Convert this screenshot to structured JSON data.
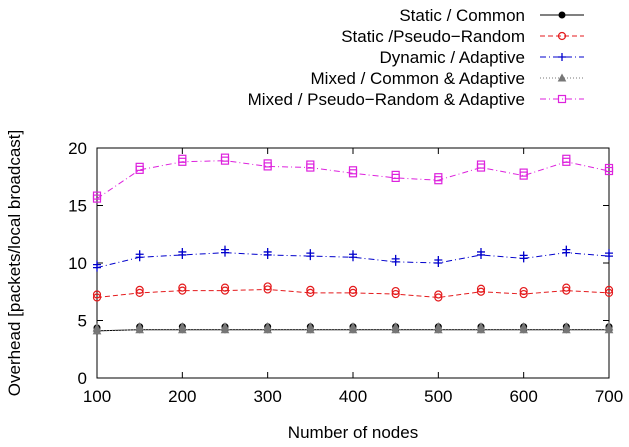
{
  "chart_data": {
    "type": "line",
    "title": "",
    "xlabel": "Number of nodes",
    "ylabel": "Overhead [packets/local broadcast]",
    "xlim": [
      100,
      700
    ],
    "ylim": [
      0,
      20
    ],
    "x_ticks": [
      100,
      200,
      300,
      400,
      500,
      600,
      700
    ],
    "y_ticks": [
      0,
      5,
      10,
      15,
      20
    ],
    "grid": false,
    "legend": "top-right, outside plot area",
    "x": [
      100,
      150,
      200,
      250,
      300,
      350,
      400,
      450,
      500,
      550,
      600,
      650,
      700
    ],
    "series": [
      {
        "name": "Static / Common",
        "color": "#000000",
        "marker": "filled-circle",
        "dash": "solid",
        "values": [
          4.1,
          4.2,
          4.2,
          4.2,
          4.2,
          4.2,
          4.2,
          4.2,
          4.2,
          4.2,
          4.2,
          4.2,
          4.2
        ]
      },
      {
        "name": "Static /Pseudo−Random",
        "color": "#e41a1c",
        "marker": "open-circle",
        "dash": "dashed",
        "values": [
          7.0,
          7.4,
          7.6,
          7.6,
          7.7,
          7.4,
          7.4,
          7.3,
          7.0,
          7.5,
          7.3,
          7.6,
          7.4
        ]
      },
      {
        "name": "Dynamic / Adaptive",
        "color": "#0000cc",
        "marker": "plus",
        "dash": "dash-dot",
        "values": [
          9.6,
          10.5,
          10.7,
          10.9,
          10.7,
          10.6,
          10.5,
          10.1,
          10.0,
          10.7,
          10.4,
          10.9,
          10.6
        ]
      },
      {
        "name": "Mixed / Common & Adaptive",
        "color": "#777777",
        "marker": "filled-triangle",
        "dash": "dotted",
        "values": [
          4.1,
          4.2,
          4.2,
          4.2,
          4.2,
          4.2,
          4.2,
          4.2,
          4.2,
          4.2,
          4.2,
          4.2,
          4.2
        ]
      },
      {
        "name": "Mixed / Pseudo−Random & Adaptive",
        "color": "#dd22dd",
        "marker": "open-square",
        "dash": "dash-dot",
        "values": [
          15.6,
          18.1,
          18.8,
          18.9,
          18.4,
          18.3,
          17.8,
          17.4,
          17.2,
          18.3,
          17.6,
          18.8,
          18.0
        ]
      }
    ]
  }
}
